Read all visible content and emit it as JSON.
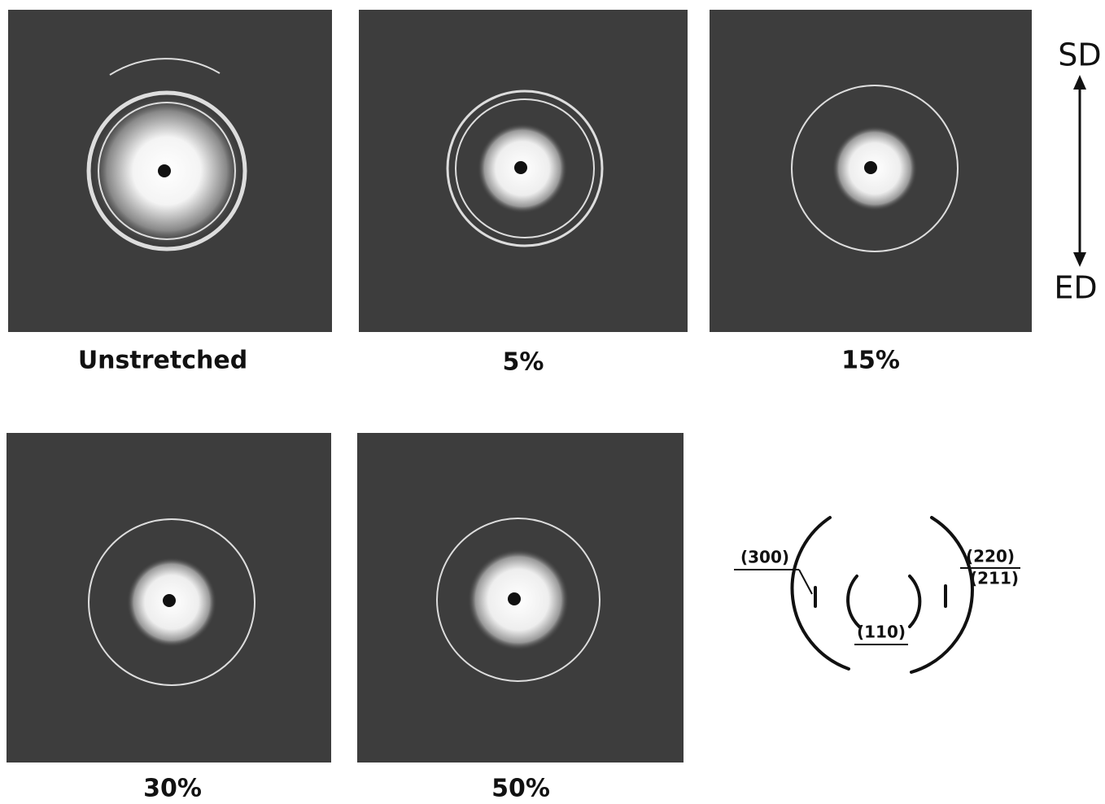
{
  "panels": [
    {
      "label": "Unstretched"
    },
    {
      "label": "5%"
    },
    {
      "label": "15%"
    },
    {
      "label": "30%"
    },
    {
      "label": "50%"
    }
  ],
  "direction": {
    "top": "SD",
    "bottom": "ED"
  },
  "schematic": {
    "labels": [
      "(300)",
      "(220)",
      "(211)",
      "(110)"
    ]
  }
}
